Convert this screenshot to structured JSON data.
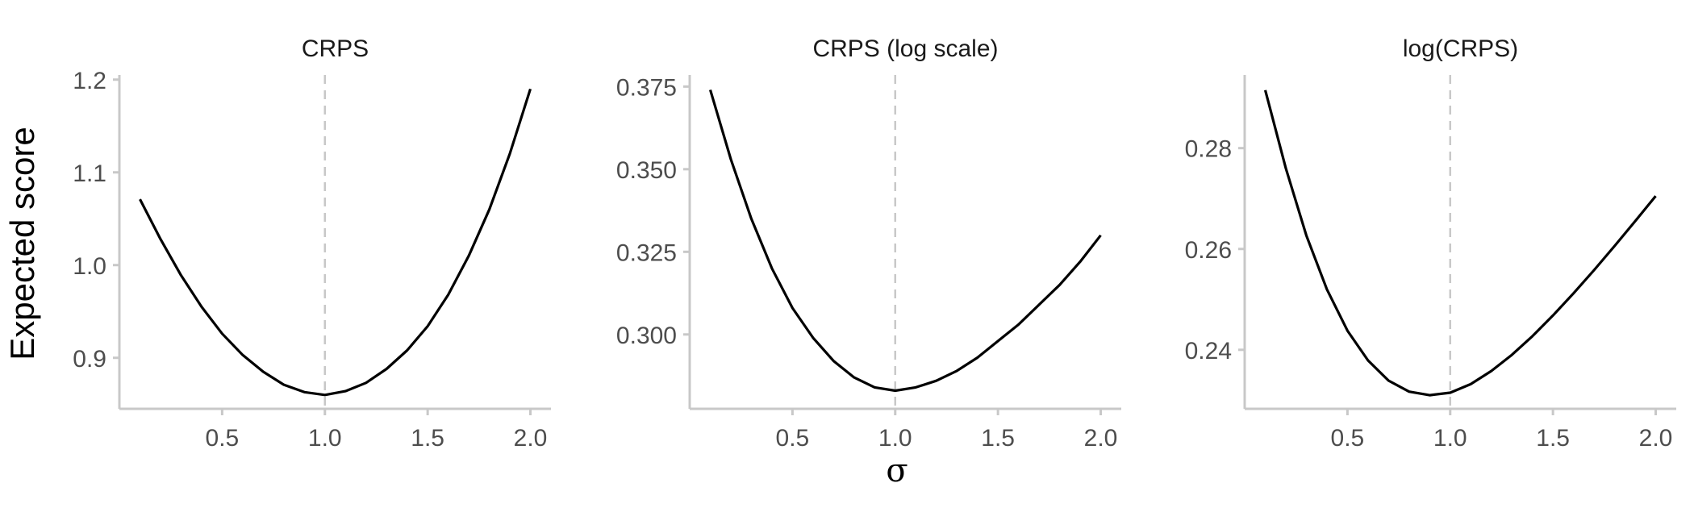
{
  "ylabel": "Expected score",
  "xlabel": "σ",
  "chart_data": [
    {
      "type": "line",
      "title": "CRPS",
      "xlim": [
        0.0,
        2.1
      ],
      "ylim": [
        0.845,
        1.205
      ],
      "x_ticks": [
        0.5,
        1.0,
        1.5,
        2.0
      ],
      "x_tick_labels": [
        "0.5",
        "1.0",
        "1.5",
        "2.0"
      ],
      "y_ticks": [
        0.9,
        1.0,
        1.1,
        1.2
      ],
      "y_tick_labels": [
        "0.9",
        "1.0",
        "1.1",
        "1.2"
      ],
      "reference_x": 1.0,
      "x": [
        0.1,
        0.2,
        0.3,
        0.4,
        0.5,
        0.6,
        0.7,
        0.8,
        0.9,
        1.0,
        1.1,
        1.2,
        1.3,
        1.4,
        1.5,
        1.6,
        1.7,
        1.8,
        1.9,
        2.0
      ],
      "values": [
        1.071,
        1.028,
        0.989,
        0.955,
        0.926,
        0.903,
        0.885,
        0.871,
        0.863,
        0.86,
        0.864,
        0.873,
        0.888,
        0.908,
        0.934,
        0.968,
        1.01,
        1.06,
        1.12,
        1.19
      ],
      "grid": false
    },
    {
      "type": "line",
      "title": "CRPS (log scale)",
      "xlim": [
        0.0,
        2.1
      ],
      "ylim": [
        0.2775,
        0.3785
      ],
      "x_ticks": [
        0.5,
        1.0,
        1.5,
        2.0
      ],
      "x_tick_labels": [
        "0.5",
        "1.0",
        "1.5",
        "2.0"
      ],
      "y_ticks": [
        0.3,
        0.325,
        0.35,
        0.375
      ],
      "y_tick_labels": [
        "0.300",
        "0.325",
        "0.350",
        "0.375"
      ],
      "reference_x": 1.0,
      "x": [
        0.1,
        0.2,
        0.3,
        0.4,
        0.5,
        0.6,
        0.7,
        0.8,
        0.9,
        1.0,
        1.1,
        1.2,
        1.3,
        1.4,
        1.5,
        1.6,
        1.7,
        1.8,
        1.9,
        2.0
      ],
      "values": [
        0.374,
        0.353,
        0.335,
        0.32,
        0.308,
        0.299,
        0.292,
        0.287,
        0.284,
        0.283,
        0.284,
        0.286,
        0.289,
        0.293,
        0.298,
        0.303,
        0.309,
        0.315,
        0.322,
        0.33
      ],
      "grid": false
    },
    {
      "type": "line",
      "title": "log(CRPS)",
      "xlim": [
        0.0,
        2.1
      ],
      "ylim": [
        0.2283,
        0.2945
      ],
      "x_ticks": [
        0.5,
        1.0,
        1.5,
        2.0
      ],
      "x_tick_labels": [
        "0.5",
        "1.0",
        "1.5",
        "2.0"
      ],
      "y_ticks": [
        0.24,
        0.26,
        0.28
      ],
      "y_tick_labels": [
        "0.24",
        "0.26",
        "0.28"
      ],
      "reference_x": 1.0,
      "x": [
        0.1,
        0.2,
        0.3,
        0.4,
        0.5,
        0.6,
        0.7,
        0.8,
        0.9,
        1.0,
        1.1,
        1.2,
        1.3,
        1.4,
        1.5,
        1.6,
        1.7,
        1.8,
        1.9,
        2.0
      ],
      "values": [
        0.2915,
        0.276,
        0.2627,
        0.252,
        0.2438,
        0.2379,
        0.2339,
        0.2317,
        0.231,
        0.2315,
        0.2332,
        0.2358,
        0.239,
        0.2427,
        0.2468,
        0.2512,
        0.2558,
        0.2606,
        0.2655,
        0.2705
      ],
      "grid": false
    }
  ]
}
